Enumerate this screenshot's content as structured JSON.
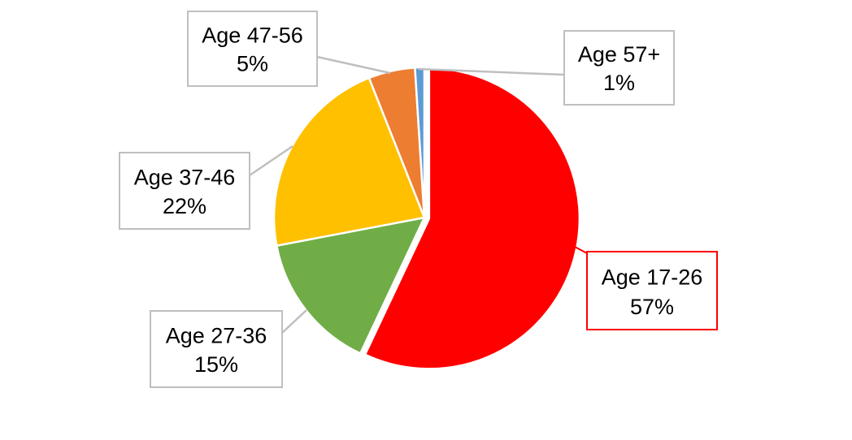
{
  "chart_data": {
    "type": "pie",
    "title": "",
    "slices": [
      {
        "label": "Age 17-26",
        "value": 57,
        "value_label": "57%",
        "color": "#ff0000"
      },
      {
        "label": "Age 27-36",
        "value": 15,
        "value_label": "15%",
        "color": "#70ad47"
      },
      {
        "label": "Age 37-46",
        "value": 22,
        "value_label": "22%",
        "color": "#ffc000"
      },
      {
        "label": "Age 47-56",
        "value": 5,
        "value_label": "5%",
        "color": "#ed7d31"
      },
      {
        "label": "Age 57+",
        "value": 1,
        "value_label": "1%",
        "color": "#5b9bd5"
      }
    ],
    "legend": "none",
    "data_labels": "callouts"
  }
}
